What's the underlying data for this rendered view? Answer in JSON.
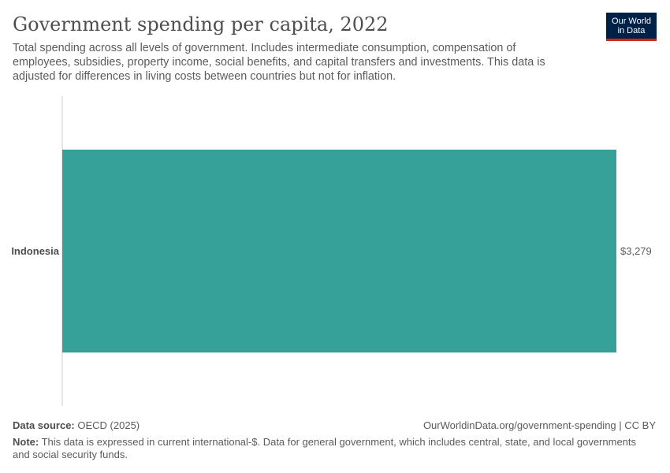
{
  "header": {
    "title": "Government spending per capita, 2022",
    "subtitle": "Total spending across all levels of government. Includes intermediate consumption, compensation of employees, subsidies, property income, social benefits, and capital transfers and investments. This data is adjusted for differences in living costs between countries but not for inflation."
  },
  "logo": {
    "line1": "Our World",
    "line2": "in Data",
    "bg_color": "#002147",
    "accent_color": "#ce261e"
  },
  "chart_data": {
    "type": "bar",
    "orientation": "horizontal",
    "title": "Government spending per capita, 2022",
    "categories": [
      "Indonesia"
    ],
    "values": [
      3279
    ],
    "value_labels": [
      "$3,279"
    ],
    "unit": "current international-$",
    "xlim": [
      0,
      3279
    ],
    "bar_color": "#36a199",
    "grid": false,
    "legend": "none"
  },
  "footer": {
    "source_label": "Data source:",
    "source_value": "OECD (2025)",
    "url": "OurWorldinData.org/government-spending | CC BY",
    "note_label": "Note:",
    "note_text": "This data is expressed in current international-$. Data for general government, which includes central, state, and local governments and social security funds."
  }
}
